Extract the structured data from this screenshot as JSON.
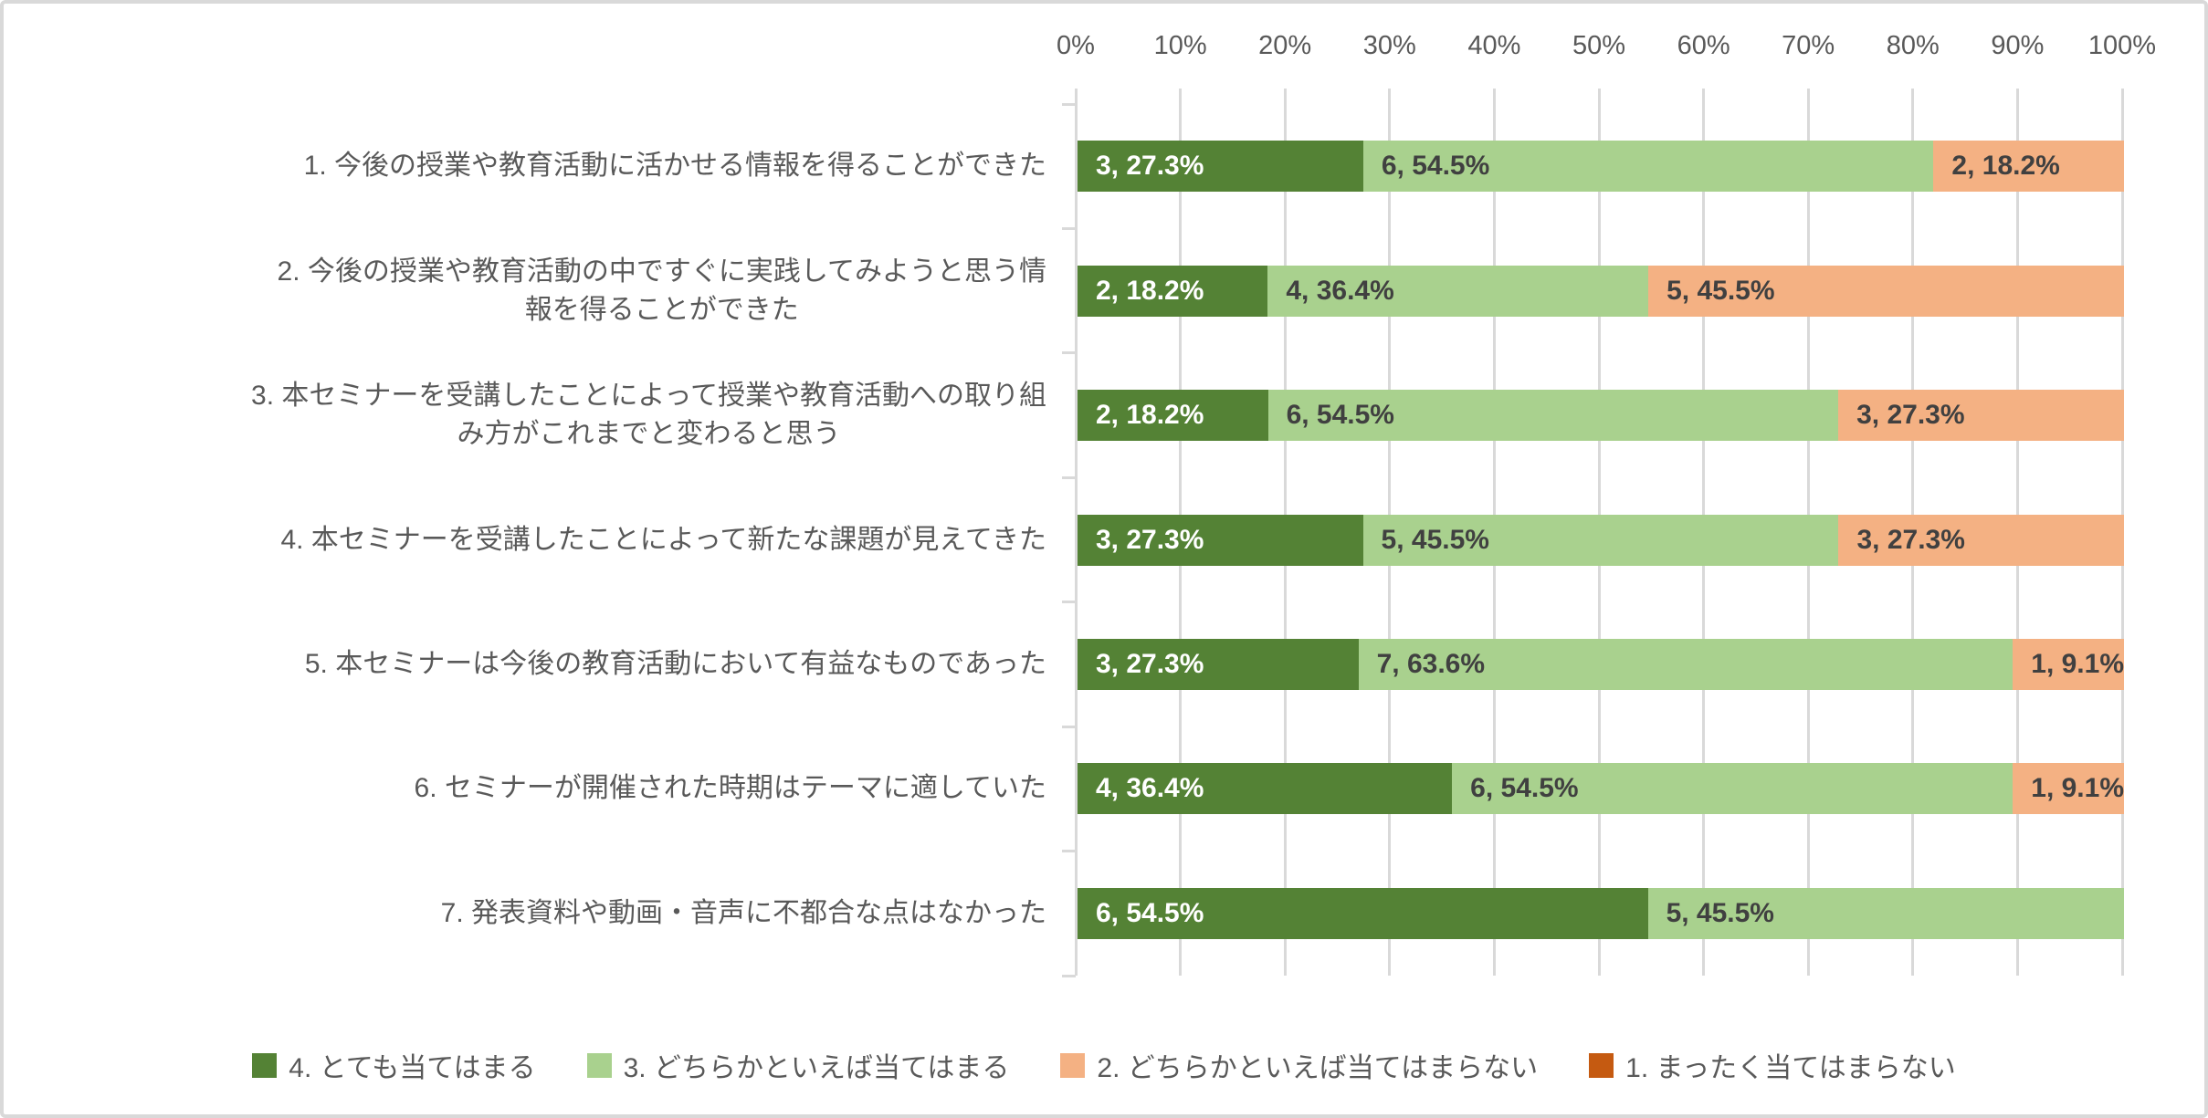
{
  "colors": {
    "series_dark_green": "#548235",
    "series_light_green": "#A9D18E",
    "series_light_orange": "#F4B183",
    "series_dark_orange": "#C55A11",
    "gridline": "#D9D9D9",
    "frame_border": "#D9D9D9",
    "axis_text": "#595959",
    "data_label_dark": "#404040",
    "data_label_light": "#FFFFFF"
  },
  "axis": {
    "ticks": [
      "0%",
      "10%",
      "20%",
      "30%",
      "40%",
      "50%",
      "60%",
      "70%",
      "80%",
      "90%",
      "100%"
    ]
  },
  "chart_data": {
    "type": "bar",
    "orientation": "horizontal",
    "stacked": true,
    "grid": true,
    "xlim": [
      0,
      100
    ],
    "xlabel": "",
    "ylabel": "",
    "title": "",
    "legend_position": "bottom",
    "value_axis_position": "top",
    "data_label_format": "count, percent%",
    "categories": [
      "1. 今後の授業や教育活動に活かせる情報を得ることができた",
      "2. 今後の授業や教育活動の中ですぐに実践してみようと思う情報を得ることができた",
      "3. 本セミナーを受講したことによって授業や教育活動への取り組み方がこれまでと変わると思う",
      "4. 本セミナーを受講したことによって新たな課題が見えてきた",
      "5. 本セミナーは今後の教育活動において有益なものであった",
      "6. セミナーが開催された時期はテーマに適していた",
      "7. 発表資料や動画・音声に不都合な点はなかった"
    ],
    "category_lines": [
      [
        "1. 今後の授業や教育活動に活かせる情報を得ることができた"
      ],
      [
        "2. 今後の授業や教育活動の中ですぐに実践してみようと思う情",
        "報を得ることができた"
      ],
      [
        "3. 本セミナーを受講したことによって授業や教育活動への取り組",
        "み方がこれまでと変わると思う"
      ],
      [
        "4. 本セミナーを受講したことによって新たな課題が見えてきた"
      ],
      [
        "5. 本セミナーは今後の教育活動において有益なものであった"
      ],
      [
        "6. セミナーが開催された時期はテーマに適していた"
      ],
      [
        "7. 発表資料や動画・音声に不都合な点はなかった"
      ]
    ],
    "series": [
      {
        "name": "4. とても当てはまる",
        "color": "#548235",
        "label_color": "#FFFFFF",
        "counts": [
          3,
          2,
          2,
          3,
          3,
          4,
          6
        ],
        "percents": [
          27.3,
          18.2,
          18.2,
          27.3,
          27.3,
          36.4,
          54.5
        ],
        "labels": [
          "3, 27.3%",
          "2, 18.2%",
          "2, 18.2%",
          "3, 27.3%",
          "3, 27.3%",
          "4, 36.4%",
          "6, 54.5%"
        ]
      },
      {
        "name": "3. どちらかといえば当てはまる",
        "color": "#A9D18E",
        "label_color": "#404040",
        "counts": [
          6,
          4,
          6,
          5,
          7,
          6,
          5
        ],
        "percents": [
          54.5,
          36.4,
          54.5,
          45.5,
          63.6,
          54.5,
          45.5
        ],
        "labels": [
          "6, 54.5%",
          "4, 36.4%",
          "6, 54.5%",
          "5, 45.5%",
          "7, 63.6%",
          "6, 54.5%",
          "5, 45.5%"
        ]
      },
      {
        "name": "2. どちらかといえば当てはまらない",
        "color": "#F4B183",
        "label_color": "#404040",
        "counts": [
          2,
          5,
          3,
          3,
          1,
          1,
          0
        ],
        "percents": [
          18.2,
          45.5,
          27.3,
          27.3,
          9.1,
          9.1,
          0
        ],
        "labels": [
          "2, 18.2%",
          "5, 45.5%",
          "3, 27.3%",
          "3, 27.3%",
          "1, 9.1%",
          "1, 9.1%",
          ""
        ]
      },
      {
        "name": "1. まったく当てはまらない",
        "color": "#C55A11",
        "label_color": "#FFFFFF",
        "counts": [
          0,
          0,
          0,
          0,
          0,
          0,
          0
        ],
        "percents": [
          0,
          0,
          0,
          0,
          0,
          0,
          0
        ],
        "labels": [
          "",
          "",
          "",
          "",
          "",
          "",
          ""
        ]
      }
    ]
  },
  "legend": {
    "items": [
      {
        "label": "4. とても当てはまる",
        "color": "#548235"
      },
      {
        "label": "3. どちらかといえば当てはまる",
        "color": "#A9D18E"
      },
      {
        "label": "2. どちらかといえば当てはまらない",
        "color": "#F4B183"
      },
      {
        "label": "1. まったく当てはまらない",
        "color": "#C55A11"
      }
    ]
  }
}
